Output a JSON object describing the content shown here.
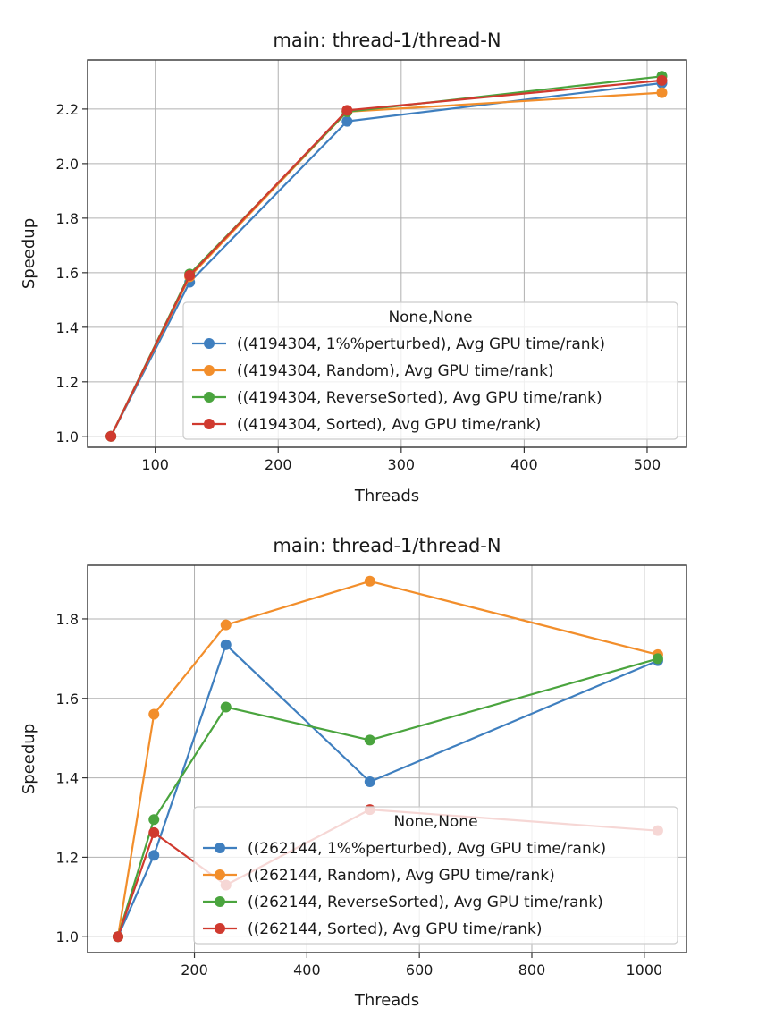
{
  "chart_data": [
    {
      "type": "line",
      "title": "main: thread-1/thread-N",
      "xlabel": "Threads",
      "ylabel": "Speedup",
      "xlim": [
        45,
        532
      ],
      "ylim": [
        0.96,
        2.38
      ],
      "xticks": [
        100,
        200,
        300,
        400,
        500
      ],
      "yticks": [
        1.0,
        1.2,
        1.4,
        1.6,
        1.8,
        2.0,
        2.2
      ],
      "grid": true,
      "legend_title": "None,None",
      "legend_position": "lower right",
      "x": [
        64,
        128,
        256,
        512
      ],
      "series": [
        {
          "name": "((4194304, 1%%perturbed), Avg GPU time/rank)",
          "color": "#3f7fbf",
          "values": [
            1.0,
            1.565,
            2.155,
            2.295
          ]
        },
        {
          "name": "((4194304, Random), Avg GPU time/rank)",
          "color": "#f28e2b",
          "values": [
            1.0,
            1.585,
            2.19,
            2.26
          ]
        },
        {
          "name": "((4194304, ReverseSorted), Avg GPU time/rank)",
          "color": "#4aa43e",
          "values": [
            1.0,
            1.595,
            2.19,
            2.32
          ]
        },
        {
          "name": "((4194304, Sorted), Avg GPU time/rank)",
          "color": "#d03a2f",
          "values": [
            1.0,
            1.59,
            2.195,
            2.305
          ]
        }
      ]
    },
    {
      "type": "line",
      "title": "main: thread-1/thread-N",
      "xlabel": "Threads",
      "ylabel": "Speedup",
      "xlim": [
        10,
        1075
      ],
      "ylim": [
        0.96,
        1.935
      ],
      "xticks": [
        200,
        400,
        600,
        800,
        1000
      ],
      "yticks": [
        1.0,
        1.2,
        1.4,
        1.6,
        1.8
      ],
      "grid": true,
      "legend_title": "None,None",
      "legend_position": "lower right",
      "x": [
        64,
        128,
        256,
        512,
        1024
      ],
      "series": [
        {
          "name": "((262144, 1%%perturbed), Avg GPU time/rank)",
          "color": "#3f7fbf",
          "values": [
            1.0,
            1.205,
            1.735,
            1.39,
            1.695
          ]
        },
        {
          "name": "((262144, Random), Avg GPU time/rank)",
          "color": "#f28e2b",
          "values": [
            1.0,
            1.56,
            1.785,
            1.895,
            1.71
          ]
        },
        {
          "name": "((262144, ReverseSorted), Avg GPU time/rank)",
          "color": "#4aa43e",
          "values": [
            1.0,
            1.295,
            1.578,
            1.495,
            1.7
          ]
        },
        {
          "name": "((262144, Sorted), Avg GPU time/rank)",
          "color": "#d03a2f",
          "values": [
            1.0,
            1.262,
            1.13,
            1.32,
            1.267
          ]
        }
      ]
    }
  ]
}
